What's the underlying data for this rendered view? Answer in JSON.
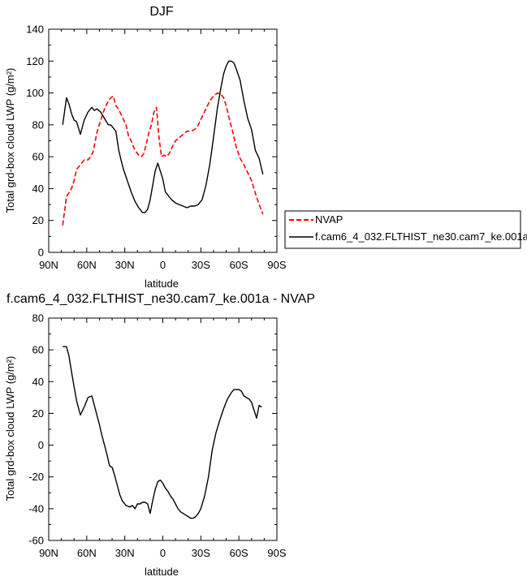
{
  "chart_data": [
    {
      "type": "line",
      "title": "DJF",
      "xlabel": "latitude",
      "ylabel": "Total grd-box cloud LWP (g/m²)",
      "xlim": [
        -90,
        90
      ],
      "ylim": [
        0,
        140
      ],
      "xticks": [
        -90,
        -60,
        -30,
        0,
        30,
        60,
        90
      ],
      "xtick_labels": [
        "90N",
        "60N",
        "30N",
        "0",
        "30S",
        "60S",
        "90S"
      ],
      "yticks": [
        0,
        20,
        40,
        60,
        80,
        100,
        120,
        140
      ],
      "ytick_labels": [
        "0",
        "20",
        "40",
        "60",
        "80",
        "100",
        "120",
        "140"
      ],
      "grid": false,
      "legend_position": "right-outside",
      "series": [
        {
          "name": "NVAP",
          "color": "#ff0000",
          "dash": "dashed",
          "x": [
            -79,
            -76,
            -72,
            -70,
            -68,
            -65,
            -62,
            -59,
            -57,
            -55,
            -52,
            -49,
            -46,
            -43,
            -41,
            -39,
            -37,
            -35,
            -32,
            -29,
            -27,
            -25,
            -22,
            -19,
            -17,
            -15,
            -13,
            -11,
            -9,
            -7,
            -5,
            -3,
            -1,
            1,
            3,
            5,
            8,
            10,
            13,
            16,
            19,
            22,
            25,
            28,
            31,
            34,
            37,
            40,
            43,
            46,
            48,
            50,
            52,
            55,
            58,
            61,
            64,
            67,
            70,
            73,
            76,
            79
          ],
          "y": [
            17,
            35,
            40,
            45,
            52,
            55,
            58,
            58,
            60,
            63,
            75,
            83,
            90,
            95,
            97,
            98,
            92,
            90,
            85,
            80,
            73,
            70,
            64,
            61,
            60,
            62,
            68,
            75,
            80,
            88,
            91,
            72,
            60,
            61,
            60,
            62,
            67,
            70,
            72,
            74,
            76,
            76,
            77,
            80,
            85,
            90,
            95,
            98,
            100,
            99,
            97,
            92,
            85,
            76,
            66,
            59,
            55,
            50,
            45,
            37,
            30,
            24
          ]
        },
        {
          "name": "f.cam6_4_032.FLTHIST_ne30.cam7_ke.001a",
          "color": "#000000",
          "dash": "solid",
          "x": [
            -79,
            -76,
            -74,
            -72,
            -70,
            -68,
            -65,
            -62,
            -59,
            -56,
            -54,
            -52,
            -49,
            -46,
            -43,
            -41,
            -39,
            -37,
            -35,
            -33,
            -31,
            -28,
            -25,
            -22,
            -19,
            -16,
            -14,
            -12,
            -10,
            -8,
            -6,
            -4,
            -2,
            0,
            2,
            4,
            7,
            10,
            13,
            16,
            19,
            22,
            25,
            28,
            31,
            34,
            37,
            40,
            43,
            46,
            48,
            50,
            52,
            54,
            56,
            58,
            61,
            64,
            67,
            70,
            73,
            76,
            79
          ],
          "y": [
            80,
            97,
            93,
            87,
            83,
            82,
            74,
            83,
            88,
            91,
            89,
            90,
            88,
            84,
            80,
            80,
            78,
            76,
            65,
            58,
            52,
            45,
            38,
            32,
            28,
            25,
            25,
            27,
            33,
            42,
            51,
            56,
            51,
            46,
            38,
            36,
            33,
            31,
            30,
            29,
            28,
            29,
            29,
            30,
            33,
            42,
            55,
            72,
            90,
            104,
            112,
            117,
            120,
            120,
            119,
            115,
            108,
            95,
            84,
            77,
            64,
            59,
            49
          ]
        }
      ]
    },
    {
      "type": "line",
      "title": "f.cam6_4_032.FLTHIST_ne30.cam7_ke.001a - NVAP",
      "xlabel": "latitude",
      "ylabel": "Total grd-box cloud LWP (g/m²)",
      "xlim": [
        -90,
        90
      ],
      "ylim": [
        -60,
        80
      ],
      "xticks": [
        -90,
        -60,
        -30,
        0,
        30,
        60,
        90
      ],
      "xtick_labels": [
        "90N",
        "60N",
        "30N",
        "0",
        "30S",
        "60S",
        "90S"
      ],
      "yticks": [
        -60,
        -40,
        -20,
        0,
        20,
        40,
        60,
        80
      ],
      "ytick_labels": [
        "-60",
        "-40",
        "-20",
        "0",
        "20",
        "40",
        "60",
        "80"
      ],
      "grid": false,
      "series": [
        {
          "name": "",
          "color": "#000000",
          "dash": "solid",
          "x": [
            -79,
            -76,
            -74,
            -72,
            -70,
            -68,
            -65,
            -62,
            -59,
            -56,
            -54,
            -52,
            -50,
            -48,
            -46,
            -44,
            -42,
            -40,
            -38,
            -36,
            -34,
            -32,
            -29,
            -26,
            -24,
            -22,
            -20,
            -18,
            -16,
            -14,
            -12,
            -10,
            -8,
            -6,
            -4,
            -2,
            0,
            2,
            4,
            6,
            8,
            10,
            12,
            14,
            16,
            18,
            20,
            22,
            24,
            26,
            28,
            30,
            33,
            36,
            39,
            42,
            45,
            48,
            51,
            54,
            56,
            58,
            60,
            62,
            64,
            66,
            68,
            70,
            72,
            74,
            76,
            78
          ],
          "y": [
            62,
            62,
            56,
            46,
            37,
            28,
            19,
            24,
            30,
            31,
            25,
            19,
            13,
            6,
            0,
            -6,
            -13,
            -14,
            -19,
            -25,
            -31,
            -35,
            -38,
            -39,
            -38,
            -40,
            -37,
            -37,
            -36,
            -36,
            -37,
            -43,
            -35,
            -28,
            -23,
            -22,
            -24,
            -27,
            -29,
            -32,
            -34,
            -37,
            -40,
            -42,
            -43,
            -44,
            -45,
            -46,
            -46,
            -45,
            -43,
            -40,
            -32,
            -20,
            -3,
            8,
            16,
            23,
            29,
            33,
            35,
            35,
            35,
            34,
            31,
            30,
            29,
            27,
            22,
            17,
            25,
            24
          ]
        }
      ]
    }
  ]
}
